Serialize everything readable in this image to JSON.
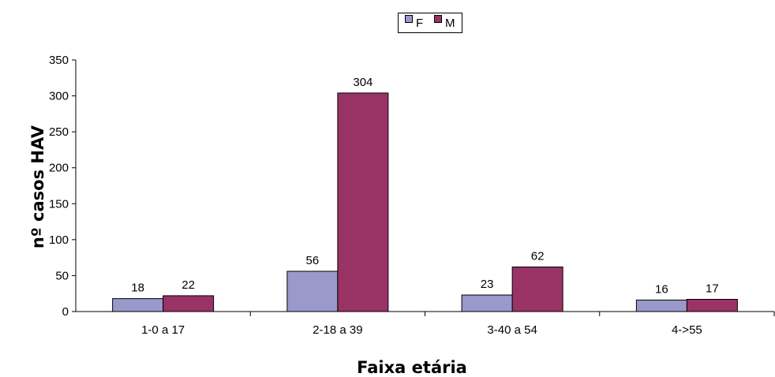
{
  "chart_data": {
    "type": "bar",
    "categories": [
      "1-0 a 17",
      "2-18 a 39",
      "3-40 a 54",
      "4->55"
    ],
    "series": [
      {
        "name": "F",
        "values": [
          18,
          56,
          23,
          16
        ],
        "color": "#9999cc"
      },
      {
        "name": "M",
        "values": [
          22,
          304,
          62,
          17
        ],
        "color": "#993366"
      }
    ],
    "title": "",
    "xlabel": "Faixa etária",
    "ylabel": "nº casos HAV",
    "ylim": [
      0,
      350
    ],
    "yticks": [
      "0",
      "50",
      "100",
      "150",
      "200",
      "250",
      "300",
      "350"
    ],
    "grid": false,
    "legend_position": "top-center",
    "data_labels": true
  }
}
